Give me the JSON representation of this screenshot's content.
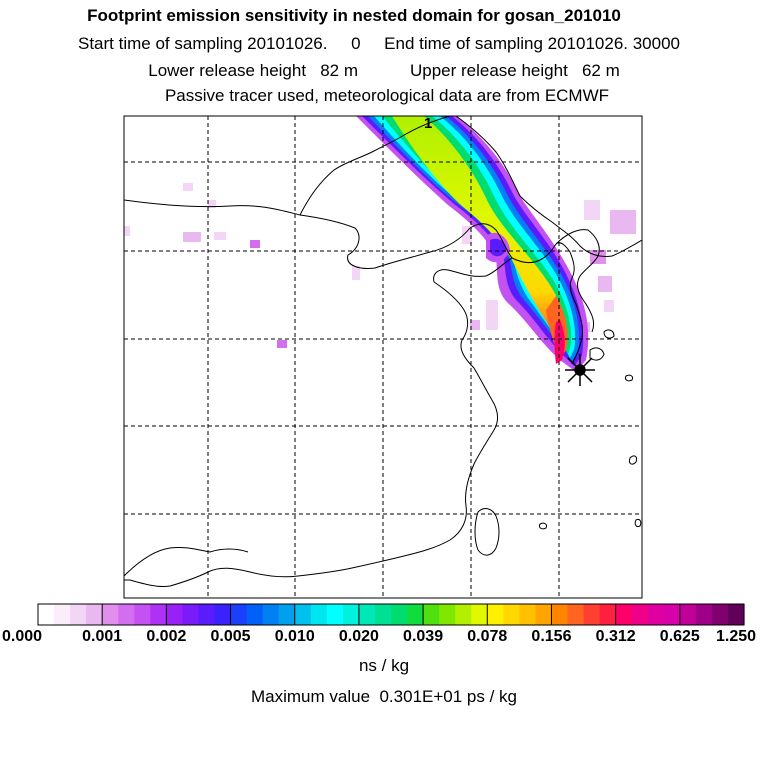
{
  "header": {
    "title": "Footprint emission sensitivity in nested domain for gosan_201010",
    "sampling": "Start time of sampling 20101026.     0     End time of sampling 20101026. 30000",
    "release": "Lower release height   82 m           Upper release height   62 m",
    "tracer": "Passive tracer used, meteorological data are from ECMWF"
  },
  "map": {
    "trajectory_label": "1",
    "receptor_icon": "star-marker-icon"
  },
  "colorbar": {
    "tick_labels": [
      "0.000",
      "0.001",
      "0.002",
      "0.005",
      "0.010",
      "0.020",
      "0.039",
      "0.078",
      "0.156",
      "0.312",
      "0.625",
      "1.250"
    ],
    "colors": [
      "#ffffff",
      "#fbeefb",
      "#f3d6f5",
      "#eab8f0",
      "#e090ec",
      "#d36ef0",
      "#c452f2",
      "#b030f5",
      "#9a20f8",
      "#7a1cfa",
      "#5a1cfc",
      "#3a22fd",
      "#1a40fc",
      "#0060f8",
      "#0080f2",
      "#00a0ee",
      "#00c0ee",
      "#00e6f0",
      "#00ffff",
      "#00f2dc",
      "#00e8b8",
      "#00e094",
      "#00dc70",
      "#10dc40",
      "#50e010",
      "#80e800",
      "#b0f000",
      "#e0f800",
      "#fff000",
      "#ffd800",
      "#ffc000",
      "#ffa400",
      "#ff8400",
      "#ff6420",
      "#ff4030",
      "#ff2040",
      "#ff0068",
      "#f00088",
      "#e000a0",
      "#d800a8",
      "#c00098",
      "#a00088",
      "#800070",
      "#600058"
    ],
    "units": "ns / kg"
  },
  "footer": {
    "max_value": "Maximum value  0.301E+01 ps / kg"
  }
}
